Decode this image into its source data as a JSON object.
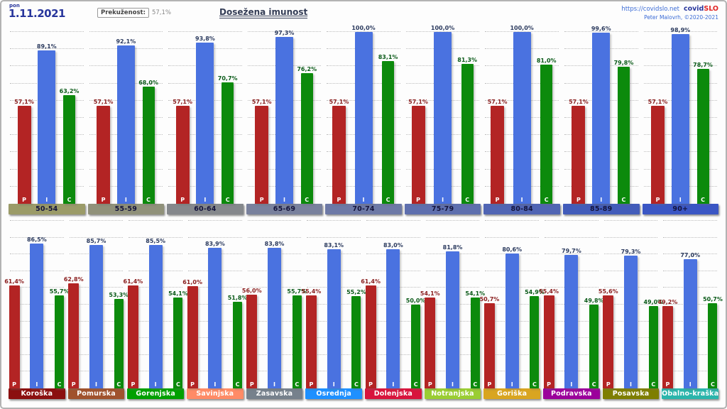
{
  "header": {
    "day_label": "pon",
    "date": "1.11.2021",
    "prevalence_label": "Prekuženost:",
    "prevalence_value": "57,1%",
    "title": "Dosežena imunost",
    "site_url": "https://covidslo.net",
    "brand_covid": "covid",
    "brand_slo": "SLO",
    "credit": "Peter Malovrh, ©2020-2021"
  },
  "series_meta": {
    "letters": [
      "P",
      "I",
      "C"
    ],
    "bar_colors": [
      "#b32424",
      "#4a72e0",
      "#0c8a0c"
    ],
    "value_label_colors": [
      "#8b2020",
      "#2b3a5e",
      "#0a5a18"
    ],
    "letter_color": "#ffffff"
  },
  "chart_data": [
    {
      "type": "bar",
      "group": "age-groups",
      "categories": [
        "50-54",
        "55-59",
        "60-64",
        "65-69",
        "70-74",
        "75-79",
        "80-84",
        "85-89",
        "90+"
      ],
      "category_colors": [
        "#9b9b68",
        "#90917a",
        "#85888c",
        "#79819d",
        "#6d79a6",
        "#5e6fae",
        "#5065b4",
        "#425cba",
        "#3a56c4"
      ],
      "category_text_color": "#14143c",
      "series": [
        {
          "name": "P",
          "values": [
            57.1,
            57.1,
            57.1,
            57.1,
            57.1,
            57.1,
            57.1,
            57.1,
            57.1
          ]
        },
        {
          "name": "I",
          "values": [
            89.1,
            92.1,
            93.8,
            97.3,
            100.0,
            100.0,
            100.0,
            99.6,
            98.9
          ]
        },
        {
          "name": "C",
          "values": [
            63.2,
            68.0,
            70.7,
            76.2,
            83.1,
            81.3,
            81.0,
            79.8,
            78.7
          ]
        }
      ],
      "ylim": [
        0,
        100
      ],
      "grid": true,
      "grid_step": 10
    },
    {
      "type": "bar",
      "group": "regions",
      "categories": [
        "Koroška",
        "Pomurska",
        "Gorenjska",
        "Savinjska",
        "Zasavska",
        "Osrednja",
        "Dolenjska",
        "Notranjska",
        "Goriška",
        "Podravska",
        "Posavska",
        "Obalno-kraška"
      ],
      "category_colors": [
        "#8b0f0f",
        "#a0522d",
        "#00a000",
        "#ff8b66",
        "#76818c",
        "#1e90ff",
        "#d8143c",
        "#9acd32",
        "#d9a520",
        "#9b009b",
        "#7e7e00",
        "#2ab5ab"
      ],
      "category_text_color": "#ffffff",
      "series": [
        {
          "name": "P",
          "values": [
            61.4,
            62.8,
            61.4,
            61.0,
            56.0,
            55.4,
            61.4,
            54.1,
            50.7,
            55.4,
            55.6,
            49.2
          ]
        },
        {
          "name": "I",
          "values": [
            86.5,
            85.7,
            85.5,
            83.9,
            83.8,
            83.1,
            83.0,
            81.8,
            80.6,
            79.7,
            79.3,
            77.0
          ]
        },
        {
          "name": "C",
          "values": [
            55.7,
            53.3,
            54.1,
            51.8,
            55.7,
            55.2,
            50.0,
            54.1,
            54.9,
            49.8,
            49.0,
            50.7
          ]
        }
      ],
      "ylim": [
        0,
        100
      ],
      "grid": true,
      "grid_step": 10
    }
  ]
}
